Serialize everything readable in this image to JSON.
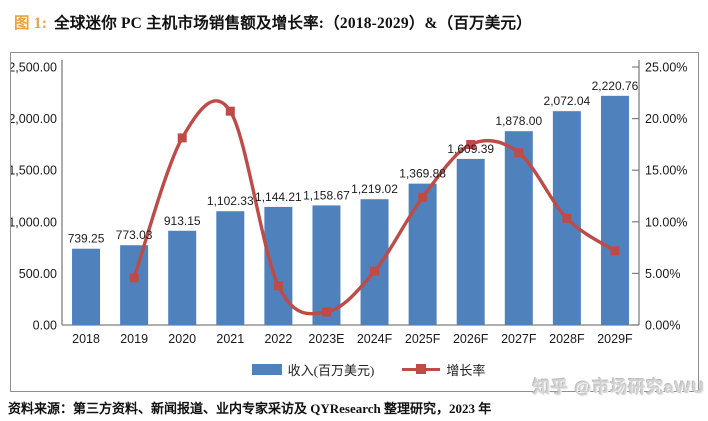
{
  "figure": {
    "label": "图 1:",
    "title": "全球迷你 PC 主机市场销售额及增长率:（2018-2029）&（百万美元）"
  },
  "chart_data": {
    "type": "bar",
    "subtype": "bar+line combo",
    "categories": [
      "2018",
      "2019",
      "2020",
      "2021",
      "2022",
      "2023E",
      "2024F",
      "2025F",
      "2026F",
      "2027F",
      "2028F",
      "2029F"
    ],
    "bar_series": {
      "name": "收入(百万美元)",
      "color": "#4F81BD",
      "values": [
        739.25,
        773.03,
        913.15,
        1102.33,
        1144.21,
        1158.67,
        1219.02,
        1369.88,
        1609.39,
        1878.0,
        2072.04,
        2220.76
      ],
      "labels": [
        "739.25",
        "773.03",
        "913.15",
        "1,102.33",
        "1,144.21",
        "1,158.67",
        "1,219.02",
        "1,369.88",
        "1,609.39",
        "1,878.00",
        "2,072.04",
        "2,220.76"
      ]
    },
    "line_series": {
      "name": "增长率",
      "color": "#BE4B48",
      "values": [
        null,
        4.57,
        18.13,
        20.72,
        3.8,
        1.26,
        5.21,
        12.38,
        17.49,
        16.69,
        10.33,
        7.18
      ]
    },
    "left_axis": {
      "min": 0,
      "max": 2500,
      "tick_values": [
        0,
        500,
        1000,
        1500,
        2000,
        2500
      ],
      "tick_labels": [
        "0.00",
        "500.00",
        "1,000.00",
        "1,500.00",
        "2,000.00",
        "2,500.00"
      ]
    },
    "right_axis": {
      "min": 0,
      "max": 25,
      "tick_values": [
        0,
        5,
        10,
        15,
        20,
        25
      ],
      "tick_labels": [
        "0.00%",
        "5.00%",
        "10.00%",
        "15.00%",
        "20.00%",
        "25.00%"
      ]
    },
    "title": "",
    "xlabel": "",
    "ylabel": "",
    "grid": false,
    "legend_position": "bottom"
  },
  "source_note": "资料来源：第三方资料、新闻报道、业内专家采访及 QYResearch 整理研究，2023 年",
  "watermark": "知乎 @市场研究aWU"
}
